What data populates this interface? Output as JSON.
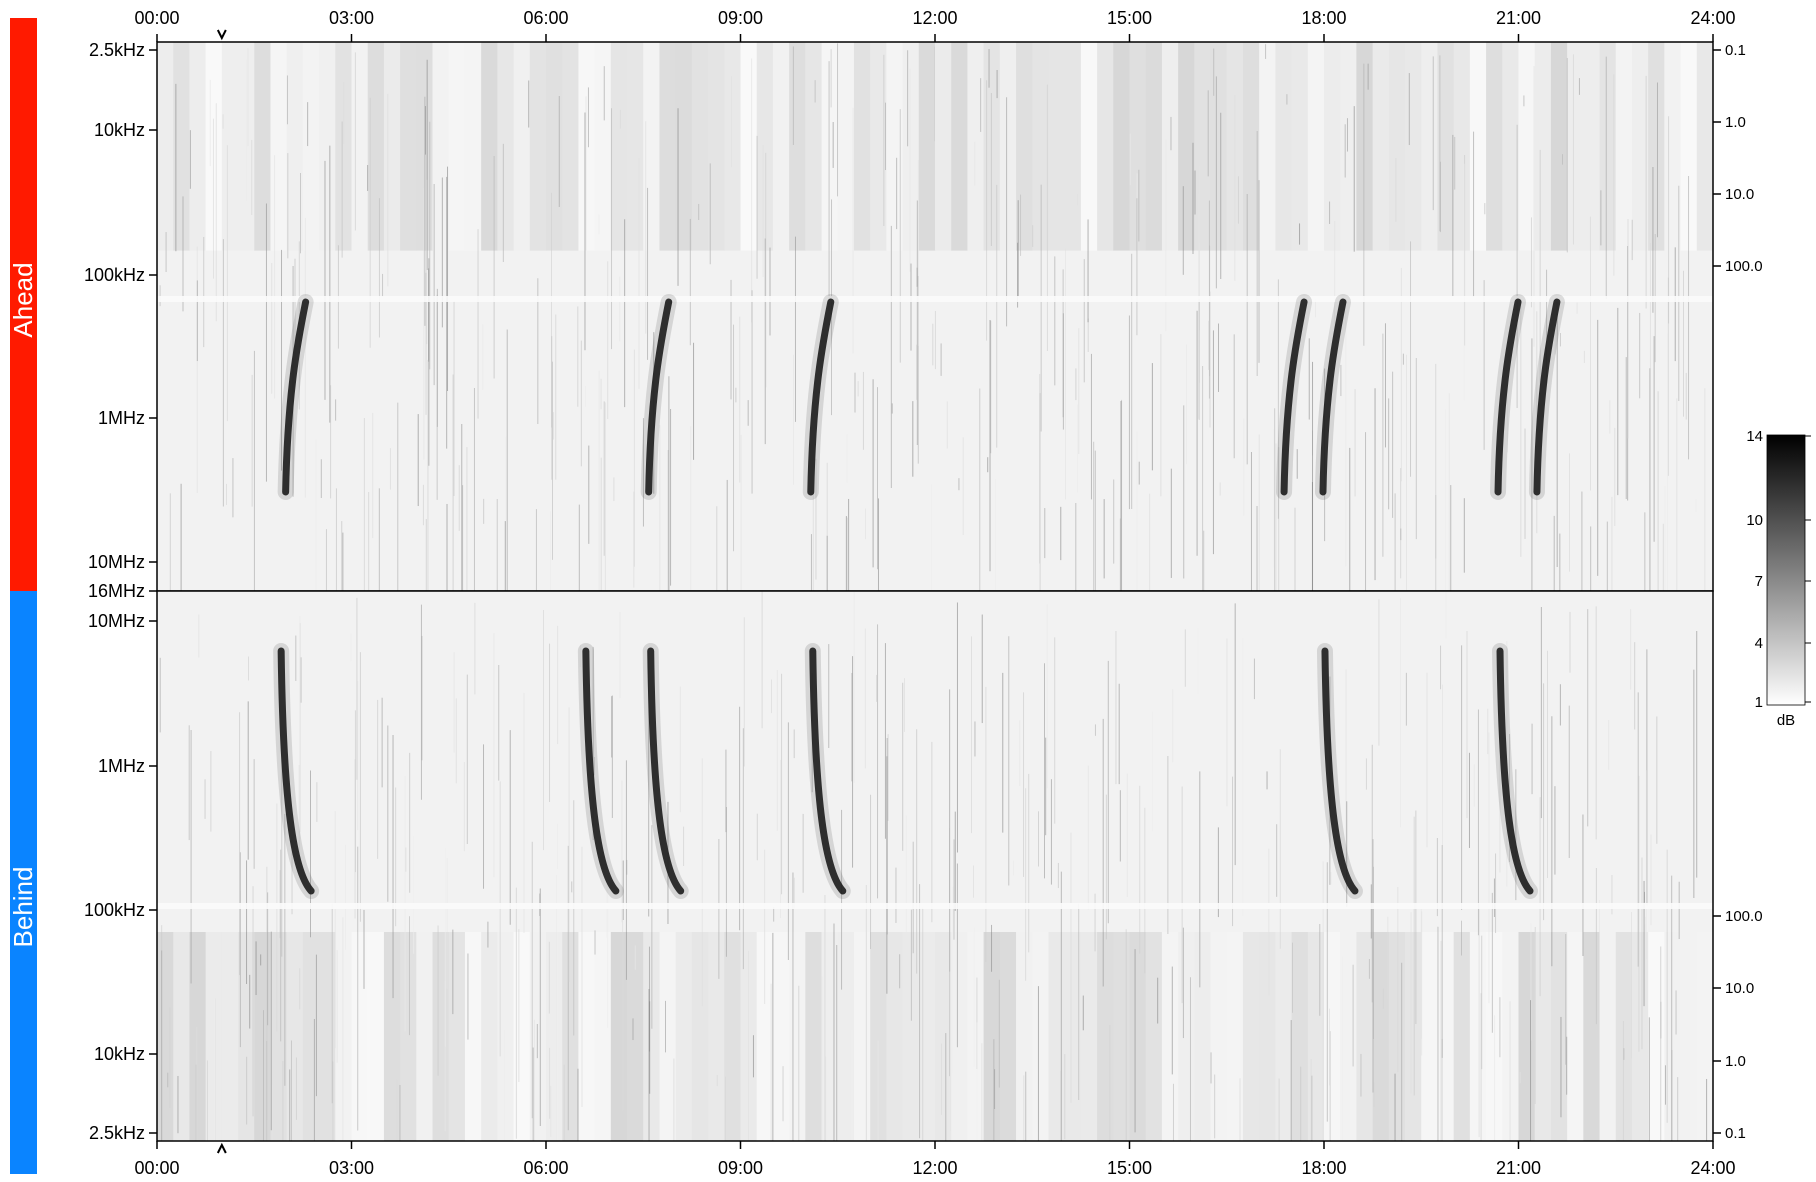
{
  "chart_data": {
    "type": "heatmap",
    "panels": [
      {
        "name": "Ahead",
        "band_color": "#ff1a00",
        "x_ticks": [
          "00:00",
          "03:00",
          "06:00",
          "09:00",
          "12:00",
          "15:00",
          "18:00",
          "21:00",
          "24:00"
        ],
        "y_ticks_left": [
          "2.5kHz",
          "10kHz",
          "100kHz",
          "1MHz",
          "10MHz",
          "16MHz"
        ],
        "y_ticks_right": [
          "0.1",
          "1.0",
          "10.0",
          "100.0"
        ],
        "bursts_hours": [
          2.2,
          7.8,
          10.3,
          17.6,
          18.2,
          20.9,
          21.5
        ]
      },
      {
        "name": "Behind",
        "band_color": "#0a84ff",
        "x_ticks": [
          "00:00",
          "03:00",
          "06:00",
          "09:00",
          "12:00",
          "15:00",
          "18:00",
          "21:00",
          "24:00"
        ],
        "y_ticks_left": [
          "10MHz",
          "1MHz",
          "100kHz",
          "10kHz",
          "2.5kHz"
        ],
        "y_ticks_right": [
          "100.0",
          "10.0",
          "1.0",
          "0.1"
        ],
        "bursts_hours": [
          2.1,
          6.8,
          7.8,
          10.3,
          18.2,
          20.9
        ]
      }
    ],
    "x_range_hours": [
      0,
      24
    ],
    "colorbar": {
      "min": 1,
      "max": 14,
      "ticks": [
        "14",
        "10",
        "7",
        "4",
        "1"
      ],
      "unit": "dB"
    },
    "markers_hours": [
      1.0
    ]
  }
}
